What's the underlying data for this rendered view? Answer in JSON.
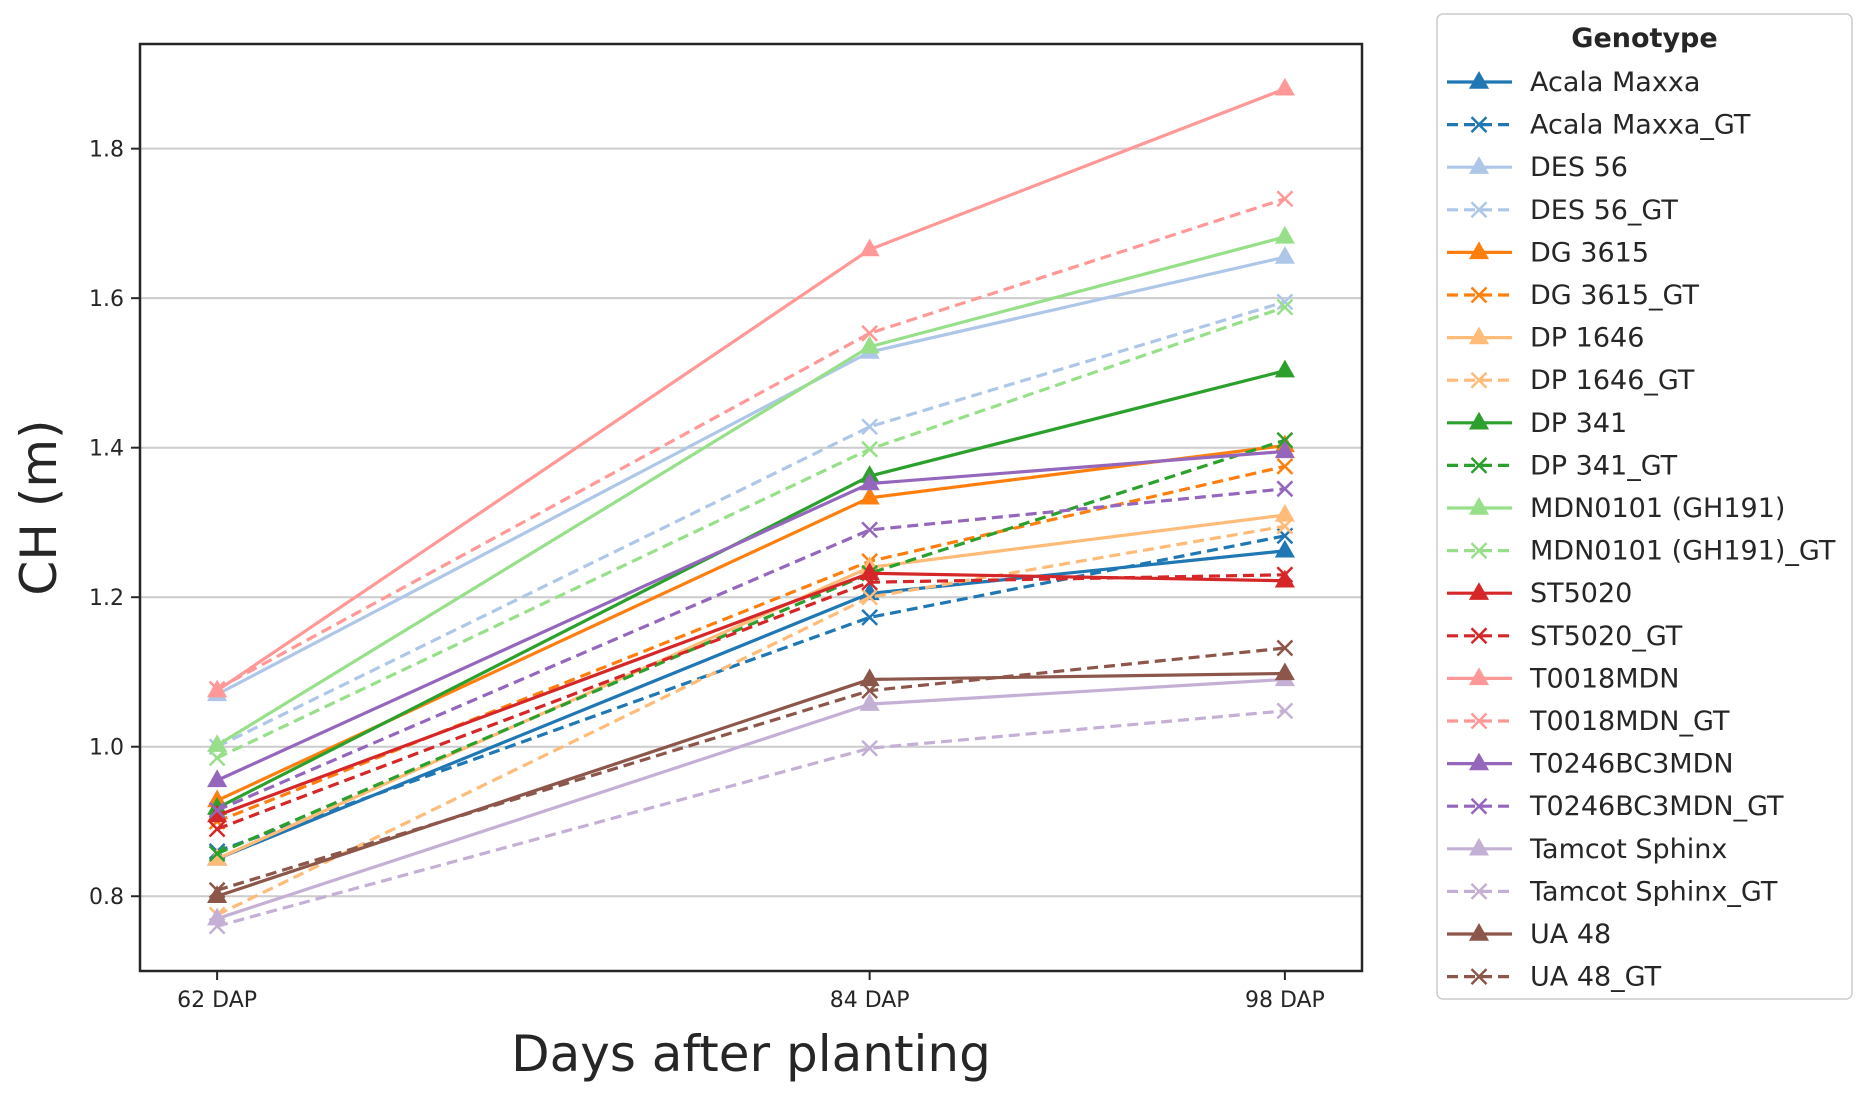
{
  "chart_data": {
    "type": "line",
    "xlabel": "Days after planting",
    "ylabel": "CH (m)",
    "x_days": [
      62,
      84,
      98
    ],
    "categories": [
      "62 DAP",
      "84 DAP",
      "98 DAP"
    ],
    "xlim": [
      59.4,
      100.6
    ],
    "ylim": [
      0.7,
      1.94
    ],
    "yticks": [
      0.8,
      1.0,
      1.2,
      1.4,
      1.6,
      1.8
    ],
    "ytick_labels": [
      "0.8",
      "1.0",
      "1.2",
      "1.4",
      "1.6",
      "1.8"
    ],
    "grid": "horizontal",
    "legend": {
      "title": "Genotype",
      "placement": "outside-right"
    },
    "series": [
      {
        "name": "Acala Maxxa",
        "color": "#1f77b4",
        "style": "solid",
        "marker": "triangle",
        "values": [
          0.85,
          1.205,
          1.262
        ]
      },
      {
        "name": "Acala Maxxa_GT",
        "color": "#1f77b4",
        "style": "dashed",
        "marker": "x",
        "values": [
          0.86,
          1.173,
          1.282
        ]
      },
      {
        "name": "DES 56",
        "color": "#aec7e8",
        "style": "solid",
        "marker": "triangle",
        "values": [
          1.07,
          1.528,
          1.655
        ]
      },
      {
        "name": "DES 56_GT",
        "color": "#aec7e8",
        "style": "dashed",
        "marker": "x",
        "values": [
          1.0,
          1.428,
          1.595
        ]
      },
      {
        "name": "DG 3615",
        "color": "#ff7f0e",
        "style": "solid",
        "marker": "triangle",
        "values": [
          0.928,
          1.333,
          1.403
        ]
      },
      {
        "name": "DG 3615_GT",
        "color": "#ff7f0e",
        "style": "dashed",
        "marker": "x",
        "values": [
          0.9,
          1.248,
          1.375
        ]
      },
      {
        "name": "DP 1646",
        "color": "#ffbb78",
        "style": "solid",
        "marker": "triangle",
        "values": [
          0.85,
          1.24,
          1.31
        ]
      },
      {
        "name": "DP 1646_GT",
        "color": "#ffbb78",
        "style": "dashed",
        "marker": "x",
        "values": [
          0.775,
          1.2,
          1.295
        ]
      },
      {
        "name": "DP 341",
        "color": "#2ca02c",
        "style": "solid",
        "marker": "triangle",
        "values": [
          0.918,
          1.362,
          1.503
        ]
      },
      {
        "name": "DP 341_GT",
        "color": "#2ca02c",
        "style": "dashed",
        "marker": "x",
        "values": [
          0.857,
          1.232,
          1.41
        ]
      },
      {
        "name": "MDN0101 (GH191)",
        "color": "#98df8a",
        "style": "solid",
        "marker": "triangle",
        "values": [
          1.002,
          1.535,
          1.682
        ]
      },
      {
        "name": "MDN0101 (GH191)_GT",
        "color": "#98df8a",
        "style": "dashed",
        "marker": "x",
        "values": [
          0.985,
          1.398,
          1.588
        ]
      },
      {
        "name": "ST5020",
        "color": "#d62728",
        "style": "solid",
        "marker": "triangle",
        "values": [
          0.908,
          1.232,
          1.222
        ]
      },
      {
        "name": "ST5020_GT",
        "color": "#d62728",
        "style": "dashed",
        "marker": "x",
        "values": [
          0.89,
          1.22,
          1.23
        ]
      },
      {
        "name": "T0018MDN",
        "color": "#ff9896",
        "style": "solid",
        "marker": "triangle",
        "values": [
          1.075,
          1.665,
          1.88
        ]
      },
      {
        "name": "T0018MDN_GT",
        "color": "#ff9896",
        "style": "dashed",
        "marker": "x",
        "values": [
          1.077,
          1.553,
          1.733
        ]
      },
      {
        "name": "T0246BC3MDN",
        "color": "#9467bd",
        "style": "solid",
        "marker": "triangle",
        "values": [
          0.955,
          1.352,
          1.395
        ]
      },
      {
        "name": "T0246BC3MDN_GT",
        "color": "#9467bd",
        "style": "dashed",
        "marker": "x",
        "values": [
          0.915,
          1.29,
          1.345
        ]
      },
      {
        "name": "Tamcot Sphinx",
        "color": "#c5b0d5",
        "style": "solid",
        "marker": "triangle",
        "values": [
          0.77,
          1.057,
          1.09
        ]
      },
      {
        "name": "Tamcot Sphinx_GT",
        "color": "#c5b0d5",
        "style": "dashed",
        "marker": "x",
        "values": [
          0.76,
          0.998,
          1.048
        ]
      },
      {
        "name": "UA 48",
        "color": "#8c564b",
        "style": "solid",
        "marker": "triangle",
        "values": [
          0.8,
          1.09,
          1.098
        ]
      },
      {
        "name": "UA 48_GT",
        "color": "#8c564b",
        "style": "dashed",
        "marker": "x",
        "values": [
          0.808,
          1.075,
          1.132
        ]
      }
    ]
  }
}
